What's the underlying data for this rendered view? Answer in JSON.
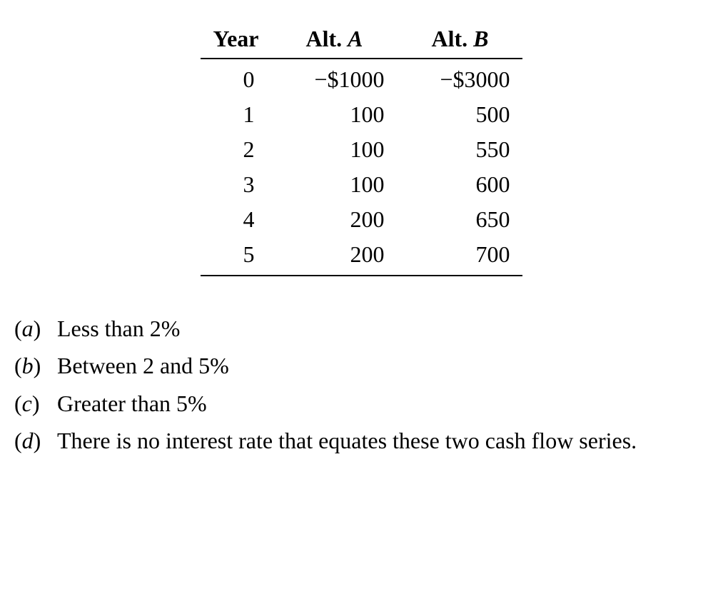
{
  "table": {
    "headers": {
      "year": "Year",
      "altA_prefix": "Alt.",
      "altA_letter": "A",
      "altB_prefix": "Alt.",
      "altB_letter": "B"
    },
    "rows": [
      {
        "year": "0",
        "a": "−$1000",
        "b": "−$3000"
      },
      {
        "year": "1",
        "a": "100",
        "b": "500"
      },
      {
        "year": "2",
        "a": "100",
        "b": "550"
      },
      {
        "year": "3",
        "a": "100",
        "b": "600"
      },
      {
        "year": "4",
        "a": "200",
        "b": "650"
      },
      {
        "year": "5",
        "a": "200",
        "b": "700"
      }
    ]
  },
  "answers": [
    {
      "letter": "a",
      "text": "Less than 2%"
    },
    {
      "letter": "b",
      "text": "Between 2 and 5%"
    },
    {
      "letter": "c",
      "text": "Greater than 5%"
    },
    {
      "letter": "d",
      "text": "There is no interest rate that equates these two cash flow series."
    }
  ],
  "style": {
    "font_family": "Times New Roman",
    "font_size_pt": 24,
    "text_color": "#000000",
    "background_color": "#ffffff",
    "rule_color": "#000000"
  }
}
